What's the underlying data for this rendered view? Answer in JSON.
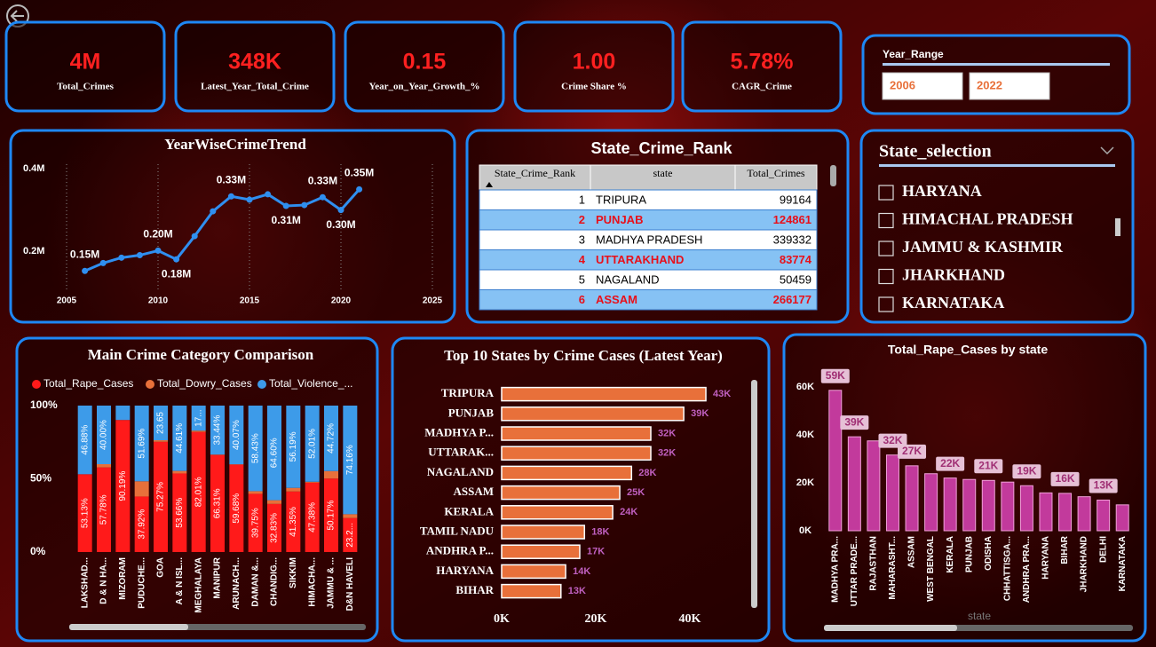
{
  "kpis": [
    {
      "value": "4M",
      "label": "Total_Crimes"
    },
    {
      "value": "348K",
      "label": "Latest_Year_Total_Crime"
    },
    {
      "value": "0.15",
      "label": "Year_on_Year_Growth_%"
    },
    {
      "value": "1.00",
      "label": "Crime Share %"
    },
    {
      "value": "5.78%",
      "label": "CAGR_Crime"
    }
  ],
  "year_range": {
    "title": "Year_Range",
    "from": "2006",
    "to": "2022"
  },
  "table": {
    "title": "State_Crime_Rank",
    "columns": [
      "State_Crime_Rank",
      "state",
      "Total_Crimes"
    ],
    "rows": [
      [
        1,
        "TRIPURA",
        99164
      ],
      [
        2,
        "PUNJAB",
        124861
      ],
      [
        3,
        "MADHYA PRADESH",
        339332
      ],
      [
        4,
        "UTTARAKHAND",
        83774
      ],
      [
        5,
        "NAGALAND",
        50459
      ],
      [
        6,
        "ASSAM",
        266177
      ]
    ]
  },
  "state_selection": {
    "title": "State_selection",
    "items": [
      "HARYANA",
      "HIMACHAL PRADESH",
      "JAMMU & KASHMIR",
      "JHARKHAND",
      "KARNATAKA"
    ]
  },
  "chart_data": [
    {
      "type": "line",
      "title": "YearWiseCrimeTrend",
      "x": [
        2006,
        2007,
        2008,
        2009,
        2010,
        2011,
        2012,
        2013,
        2014,
        2015,
        2016,
        2017,
        2018,
        2019,
        2020,
        2021
      ],
      "values": [
        0.153,
        0.172,
        0.185,
        0.191,
        0.202,
        0.181,
        0.237,
        0.297,
        0.333,
        0.325,
        0.338,
        0.31,
        0.312,
        0.331,
        0.3,
        0.35
      ],
      "value_labels": [
        "0.15M",
        null,
        null,
        null,
        "0.20M",
        "0.18M",
        null,
        null,
        "0.33M",
        null,
        null,
        "0.31M",
        null,
        "0.33M",
        "0.30M",
        "0.35M"
      ],
      "color": "#2f8ff0",
      "xlim": [
        2005,
        2025
      ],
      "xticks": [
        2005,
        2010,
        2015,
        2020,
        2025
      ],
      "ylim": [
        0.1,
        0.4
      ],
      "yticks": [
        {
          "value": 0.2,
          "label": "0.2M"
        },
        {
          "value": 0.4,
          "label": "0.4M"
        }
      ],
      "grid": true
    },
    {
      "type": "stacked_bar",
      "title": "Main Crime Category Comparison",
      "categories": [
        "LAKSHAD...",
        "D & N HA...",
        "MIZORAM",
        "PUDUCHE...",
        "GOA",
        "A & N ISL...",
        "MEGHALAYA",
        "MANIPUR",
        "ARUNACH...",
        "DAMAN &...",
        "CHANDIG...",
        "SIKKIM",
        "HIMACHA...",
        "JAMMU & ...",
        "D&N HAVELI"
      ],
      "series": [
        {
          "name": "Total_Rape_Cases",
          "color": "#ff1a1a",
          "values": [
            53.13,
            57.78,
            90.19,
            37.92,
            75.27,
            53.66,
            82.01,
            66.31,
            59.68,
            39.75,
            32.83,
            41.35,
            47.38,
            50.17,
            23.2
          ],
          "value_labels": [
            "53.13%",
            "57.78%",
            "90.19%",
            "37.92%",
            "75.27%",
            "53.66%",
            "82.01%",
            "66.31%",
            "59.68%",
            "39.75%",
            "32.83%",
            "41.35%",
            "47.38%",
            "50.17%",
            "23.2..."
          ]
        },
        {
          "name": "Total_Dowry_Cases",
          "color": "#e8703a",
          "values": [
            0,
            2.22,
            0,
            10.39,
            1.08,
            1.73,
            0.89,
            0.25,
            0.25,
            1.82,
            2.57,
            2.46,
            0.61,
            5.11,
            2.64
          ]
        },
        {
          "name": "Total_Violence_...",
          "color": "#3d9be9",
          "values": [
            46.88,
            40,
            9.81,
            51.69,
            23.65,
            44.61,
            17.1,
            33.44,
            40.07,
            58.43,
            64.6,
            56.19,
            52.01,
            44.72,
            74.16
          ],
          "value_labels": [
            "46.88%",
            "40.00%",
            null,
            "51.69%",
            "23.65",
            "44.61%",
            "17...",
            "33.44%",
            "40.07%",
            "58.43%",
            "64.60%",
            "56.19%",
            "52.01%",
            "44.72%",
            "74.16%"
          ]
        }
      ],
      "ylim": [
        0,
        100
      ],
      "yticks": [
        {
          "value": 0,
          "label": "0%"
        },
        {
          "value": 50,
          "label": "50%"
        },
        {
          "value": 100,
          "label": "100%"
        }
      ],
      "legend": "top"
    },
    {
      "type": "hbar",
      "title": "Top 10 States by Crime Cases (Latest Year)",
      "categories": [
        "TRIPURA",
        "PUNJAB",
        "MADHYA P...",
        "UTTARAK...",
        "NAGALAND",
        "ASSAM",
        "KERALA",
        "TAMIL NADU",
        "ANDHRA P...",
        "HARYANA",
        "BIHAR"
      ],
      "values": [
        43400,
        38700,
        31700,
        31700,
        27600,
        25100,
        23600,
        17600,
        16600,
        13600,
        12600
      ],
      "value_labels": [
        "43K",
        "39K",
        "32K",
        "32K",
        "28K",
        "25K",
        "24K",
        "18K",
        "17K",
        "14K",
        "13K"
      ],
      "color": "#e8703a",
      "xlim": [
        0,
        52000
      ],
      "xticks": [
        {
          "value": 0,
          "label": "0K"
        },
        {
          "value": 20000,
          "label": "20K"
        },
        {
          "value": 40000,
          "label": "40K"
        }
      ]
    },
    {
      "type": "bar",
      "title": "Total_Rape_Cases by state",
      "x_label": "state",
      "categories": [
        "MADHYA PRA...",
        "UTTAR PRADE...",
        "RAJASTHAN",
        "MAHARASHT...",
        "ASSAM",
        "WEST BENGAL",
        "KERALA",
        "PUNJAB",
        "ODISHA",
        "CHHATTISGA...",
        "ANDHRA PRA...",
        "HARYANA",
        "BIHAR",
        "JHARKHAND",
        "DELHI",
        "KARNATAKA"
      ],
      "values": [
        58600,
        39200,
        37500,
        31600,
        27100,
        23800,
        22000,
        21400,
        21000,
        20300,
        18800,
        15800,
        15600,
        14200,
        12800,
        10800
      ],
      "value_labels": [
        "59K",
        "39K",
        null,
        "32K",
        "27K",
        null,
        "22K",
        null,
        "21K",
        null,
        "19K",
        null,
        "16K",
        null,
        "13K",
        null
      ],
      "color": "#c23a9c",
      "ylim": [
        0,
        66000
      ],
      "yticks": [
        {
          "value": 0,
          "label": "0K"
        },
        {
          "value": 20000,
          "label": "20K"
        },
        {
          "value": 40000,
          "label": "40K"
        },
        {
          "value": 60000,
          "label": "60K"
        }
      ]
    }
  ]
}
